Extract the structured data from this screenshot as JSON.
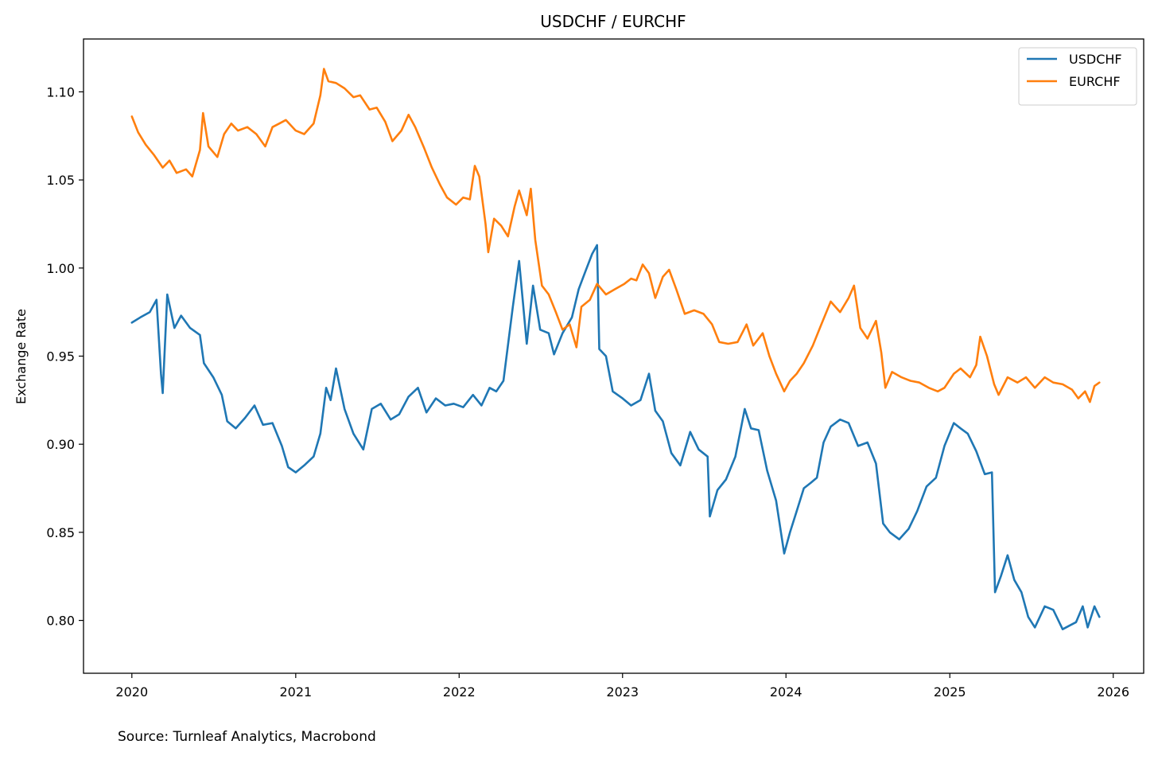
{
  "chart_data": {
    "type": "line",
    "title": "USDCHF / EURCHF",
    "xlabel": "",
    "ylabel": "Exchange Rate",
    "xlim": [
      "2019-09-15",
      "2026-03-10"
    ],
    "ylim": [
      0.77,
      1.13
    ],
    "x_ticks": [
      "2020",
      "2021",
      "2022",
      "2023",
      "2024",
      "2025",
      "2026"
    ],
    "y_ticks": [
      "0.80",
      "0.85",
      "0.90",
      "0.95",
      "1.00",
      "1.05",
      "1.10"
    ],
    "grid": false,
    "legend_position": "top-right",
    "series": [
      {
        "name": "USDCHF",
        "color": "#1f77b4",
        "points": [
          [
            "2020-01-01",
            0.969
          ],
          [
            "2020-01-20",
            0.972
          ],
          [
            "2020-02-10",
            0.975
          ],
          [
            "2020-02-25",
            0.982
          ],
          [
            "2020-03-06",
            0.94
          ],
          [
            "2020-03-10",
            0.929
          ],
          [
            "2020-03-20",
            0.985
          ],
          [
            "2020-04-05",
            0.966
          ],
          [
            "2020-04-20",
            0.973
          ],
          [
            "2020-05-10",
            0.966
          ],
          [
            "2020-06-01",
            0.962
          ],
          [
            "2020-06-10",
            0.946
          ],
          [
            "2020-07-01",
            0.938
          ],
          [
            "2020-07-20",
            0.928
          ],
          [
            "2020-08-01",
            0.913
          ],
          [
            "2020-08-20",
            0.909
          ],
          [
            "2020-09-10",
            0.915
          ],
          [
            "2020-10-01",
            0.922
          ],
          [
            "2020-10-20",
            0.911
          ],
          [
            "2020-11-10",
            0.912
          ],
          [
            "2020-12-01",
            0.899
          ],
          [
            "2020-12-15",
            0.887
          ],
          [
            "2021-01-01",
            0.884
          ],
          [
            "2021-01-20",
            0.888
          ],
          [
            "2021-02-10",
            0.893
          ],
          [
            "2021-02-25",
            0.906
          ],
          [
            "2021-03-10",
            0.932
          ],
          [
            "2021-03-20",
            0.925
          ],
          [
            "2021-04-01",
            0.943
          ],
          [
            "2021-04-20",
            0.92
          ],
          [
            "2021-05-10",
            0.906
          ],
          [
            "2021-06-01",
            0.897
          ],
          [
            "2021-06-20",
            0.92
          ],
          [
            "2021-07-10",
            0.923
          ],
          [
            "2021-08-01",
            0.914
          ],
          [
            "2021-08-20",
            0.917
          ],
          [
            "2021-09-10",
            0.927
          ],
          [
            "2021-10-01",
            0.932
          ],
          [
            "2021-10-20",
            0.918
          ],
          [
            "2021-11-10",
            0.926
          ],
          [
            "2021-12-01",
            0.922
          ],
          [
            "2021-12-20",
            0.923
          ],
          [
            "2022-01-10",
            0.921
          ],
          [
            "2022-02-01",
            0.928
          ],
          [
            "2022-02-20",
            0.922
          ],
          [
            "2022-03-10",
            0.932
          ],
          [
            "2022-03-25",
            0.93
          ],
          [
            "2022-04-10",
            0.936
          ],
          [
            "2022-05-01",
            0.978
          ],
          [
            "2022-05-15",
            1.004
          ],
          [
            "2022-06-01",
            0.957
          ],
          [
            "2022-06-15",
            0.99
          ],
          [
            "2022-07-01",
            0.965
          ],
          [
            "2022-07-20",
            0.963
          ],
          [
            "2022-08-01",
            0.951
          ],
          [
            "2022-08-20",
            0.963
          ],
          [
            "2022-09-10",
            0.972
          ],
          [
            "2022-09-25",
            0.988
          ],
          [
            "2022-10-10",
            0.998
          ],
          [
            "2022-10-25",
            1.008
          ],
          [
            "2022-11-05",
            1.013
          ],
          [
            "2022-11-10",
            0.954
          ],
          [
            "2022-11-25",
            0.95
          ],
          [
            "2022-12-10",
            0.93
          ],
          [
            "2023-01-01",
            0.926
          ],
          [
            "2023-01-20",
            0.922
          ],
          [
            "2023-02-10",
            0.925
          ],
          [
            "2023-03-01",
            0.94
          ],
          [
            "2023-03-15",
            0.919
          ],
          [
            "2023-04-01",
            0.913
          ],
          [
            "2023-04-20",
            0.895
          ],
          [
            "2023-05-10",
            0.888
          ],
          [
            "2023-06-01",
            0.907
          ],
          [
            "2023-06-20",
            0.897
          ],
          [
            "2023-07-10",
            0.893
          ],
          [
            "2023-07-15",
            0.859
          ],
          [
            "2023-08-01",
            0.874
          ],
          [
            "2023-08-20",
            0.88
          ],
          [
            "2023-09-10",
            0.893
          ],
          [
            "2023-10-01",
            0.92
          ],
          [
            "2023-10-15",
            0.909
          ],
          [
            "2023-11-01",
            0.908
          ],
          [
            "2023-11-20",
            0.885
          ],
          [
            "2023-12-10",
            0.868
          ],
          [
            "2023-12-28",
            0.838
          ],
          [
            "2024-01-10",
            0.85
          ],
          [
            "2024-01-25",
            0.862
          ],
          [
            "2024-02-10",
            0.875
          ],
          [
            "2024-02-25",
            0.878
          ],
          [
            "2024-03-10",
            0.881
          ],
          [
            "2024-03-25",
            0.901
          ],
          [
            "2024-04-10",
            0.91
          ],
          [
            "2024-05-01",
            0.914
          ],
          [
            "2024-05-20",
            0.912
          ],
          [
            "2024-06-10",
            0.899
          ],
          [
            "2024-07-01",
            0.901
          ],
          [
            "2024-07-20",
            0.889
          ],
          [
            "2024-08-05",
            0.855
          ],
          [
            "2024-08-20",
            0.85
          ],
          [
            "2024-09-10",
            0.846
          ],
          [
            "2024-10-01",
            0.852
          ],
          [
            "2024-10-20",
            0.862
          ],
          [
            "2024-11-10",
            0.876
          ],
          [
            "2024-12-01",
            0.881
          ],
          [
            "2024-12-20",
            0.899
          ],
          [
            "2025-01-10",
            0.912
          ],
          [
            "2025-01-25",
            0.909
          ],
          [
            "2025-02-10",
            0.906
          ],
          [
            "2025-03-01",
            0.896
          ],
          [
            "2025-03-20",
            0.883
          ],
          [
            "2025-04-05",
            0.884
          ],
          [
            "2025-04-12",
            0.816
          ],
          [
            "2025-04-25",
            0.825
          ],
          [
            "2025-05-10",
            0.837
          ],
          [
            "2025-05-25",
            0.823
          ],
          [
            "2025-06-10",
            0.816
          ],
          [
            "2025-06-25",
            0.802
          ],
          [
            "2025-07-10",
            0.796
          ],
          [
            "2025-08-01",
            0.808
          ],
          [
            "2025-08-20",
            0.806
          ],
          [
            "2025-09-10",
            0.795
          ],
          [
            "2025-09-25",
            0.797
          ],
          [
            "2025-10-10",
            0.799
          ],
          [
            "2025-10-25",
            0.808
          ],
          [
            "2025-11-05",
            0.796
          ],
          [
            "2025-11-20",
            0.808
          ],
          [
            "2025-12-01",
            0.802
          ]
        ]
      },
      {
        "name": "EURCHF",
        "color": "#ff7f0e",
        "points": [
          [
            "2020-01-01",
            1.086
          ],
          [
            "2020-01-15",
            1.077
          ],
          [
            "2020-02-01",
            1.07
          ],
          [
            "2020-02-20",
            1.064
          ],
          [
            "2020-03-10",
            1.057
          ],
          [
            "2020-03-25",
            1.061
          ],
          [
            "2020-04-10",
            1.054
          ],
          [
            "2020-05-01",
            1.056
          ],
          [
            "2020-05-15",
            1.052
          ],
          [
            "2020-06-01",
            1.067
          ],
          [
            "2020-06-08",
            1.088
          ],
          [
            "2020-06-20",
            1.069
          ],
          [
            "2020-07-10",
            1.063
          ],
          [
            "2020-07-25",
            1.076
          ],
          [
            "2020-08-10",
            1.082
          ],
          [
            "2020-08-25",
            1.078
          ],
          [
            "2020-09-15",
            1.08
          ],
          [
            "2020-10-05",
            1.076
          ],
          [
            "2020-10-25",
            1.069
          ],
          [
            "2020-11-10",
            1.08
          ],
          [
            "2020-11-25",
            1.082
          ],
          [
            "2020-12-10",
            1.084
          ],
          [
            "2021-01-01",
            1.078
          ],
          [
            "2021-01-20",
            1.076
          ],
          [
            "2021-02-10",
            1.082
          ],
          [
            "2021-02-25",
            1.098
          ],
          [
            "2021-03-05",
            1.113
          ],
          [
            "2021-03-15",
            1.106
          ],
          [
            "2021-04-01",
            1.105
          ],
          [
            "2021-04-20",
            1.102
          ],
          [
            "2021-05-10",
            1.097
          ],
          [
            "2021-05-25",
            1.098
          ],
          [
            "2021-06-15",
            1.09
          ],
          [
            "2021-07-01",
            1.091
          ],
          [
            "2021-07-20",
            1.083
          ],
          [
            "2021-08-05",
            1.072
          ],
          [
            "2021-08-25",
            1.078
          ],
          [
            "2021-09-10",
            1.087
          ],
          [
            "2021-09-25",
            1.08
          ],
          [
            "2021-10-15",
            1.068
          ],
          [
            "2021-11-01",
            1.057
          ],
          [
            "2021-11-20",
            1.047
          ],
          [
            "2021-12-05",
            1.04
          ],
          [
            "2021-12-25",
            1.036
          ],
          [
            "2022-01-10",
            1.04
          ],
          [
            "2022-01-25",
            1.039
          ],
          [
            "2022-02-05",
            1.058
          ],
          [
            "2022-02-15",
            1.052
          ],
          [
            "2022-03-01",
            1.025
          ],
          [
            "2022-03-07",
            1.009
          ],
          [
            "2022-03-20",
            1.028
          ],
          [
            "2022-04-05",
            1.024
          ],
          [
            "2022-04-20",
            1.018
          ],
          [
            "2022-05-05",
            1.035
          ],
          [
            "2022-05-15",
            1.044
          ],
          [
            "2022-06-01",
            1.03
          ],
          [
            "2022-06-10",
            1.045
          ],
          [
            "2022-06-20",
            1.016
          ],
          [
            "2022-07-05",
            0.99
          ],
          [
            "2022-07-20",
            0.985
          ],
          [
            "2022-08-05",
            0.975
          ],
          [
            "2022-08-20",
            0.965
          ],
          [
            "2022-09-05",
            0.968
          ],
          [
            "2022-09-20",
            0.955
          ],
          [
            "2022-10-01",
            0.978
          ],
          [
            "2022-10-20",
            0.982
          ],
          [
            "2022-11-05",
            0.991
          ],
          [
            "2022-11-25",
            0.985
          ],
          [
            "2022-12-15",
            0.988
          ],
          [
            "2023-01-05",
            0.991
          ],
          [
            "2023-01-20",
            0.994
          ],
          [
            "2023-02-01",
            0.993
          ],
          [
            "2023-02-15",
            1.002
          ],
          [
            "2023-03-01",
            0.997
          ],
          [
            "2023-03-15",
            0.983
          ],
          [
            "2023-04-01",
            0.995
          ],
          [
            "2023-04-15",
            0.999
          ],
          [
            "2023-05-01",
            0.988
          ],
          [
            "2023-05-20",
            0.974
          ],
          [
            "2023-06-10",
            0.976
          ],
          [
            "2023-07-01",
            0.974
          ],
          [
            "2023-07-20",
            0.968
          ],
          [
            "2023-08-05",
            0.958
          ],
          [
            "2023-08-25",
            0.957
          ],
          [
            "2023-09-15",
            0.958
          ],
          [
            "2023-10-05",
            0.968
          ],
          [
            "2023-10-20",
            0.956
          ],
          [
            "2023-11-10",
            0.963
          ],
          [
            "2023-11-25",
            0.95
          ],
          [
            "2023-12-10",
            0.94
          ],
          [
            "2023-12-28",
            0.93
          ],
          [
            "2024-01-10",
            0.936
          ],
          [
            "2024-01-25",
            0.94
          ],
          [
            "2024-02-10",
            0.946
          ],
          [
            "2024-03-01",
            0.956
          ],
          [
            "2024-03-20",
            0.968
          ],
          [
            "2024-04-10",
            0.981
          ],
          [
            "2024-05-01",
            0.975
          ],
          [
            "2024-05-20",
            0.983
          ],
          [
            "2024-06-01",
            0.99
          ],
          [
            "2024-06-15",
            0.966
          ],
          [
            "2024-07-01",
            0.96
          ],
          [
            "2024-07-20",
            0.97
          ],
          [
            "2024-08-01",
            0.952
          ],
          [
            "2024-08-10",
            0.932
          ],
          [
            "2024-08-25",
            0.941
          ],
          [
            "2024-09-15",
            0.938
          ],
          [
            "2024-10-05",
            0.936
          ],
          [
            "2024-10-25",
            0.935
          ],
          [
            "2024-11-15",
            0.932
          ],
          [
            "2024-12-05",
            0.93
          ],
          [
            "2024-12-20",
            0.932
          ],
          [
            "2025-01-10",
            0.94
          ],
          [
            "2025-01-25",
            0.943
          ],
          [
            "2025-02-15",
            0.938
          ],
          [
            "2025-03-01",
            0.945
          ],
          [
            "2025-03-10",
            0.961
          ],
          [
            "2025-03-25",
            0.95
          ],
          [
            "2025-04-10",
            0.934
          ],
          [
            "2025-04-20",
            0.928
          ],
          [
            "2025-05-10",
            0.938
          ],
          [
            "2025-06-01",
            0.935
          ],
          [
            "2025-06-20",
            0.938
          ],
          [
            "2025-07-10",
            0.932
          ],
          [
            "2025-08-01",
            0.938
          ],
          [
            "2025-08-20",
            0.935
          ],
          [
            "2025-09-10",
            0.934
          ],
          [
            "2025-10-01",
            0.931
          ],
          [
            "2025-10-15",
            0.926
          ],
          [
            "2025-10-30",
            0.93
          ],
          [
            "2025-11-10",
            0.924
          ],
          [
            "2025-11-20",
            0.933
          ],
          [
            "2025-12-01",
            0.935
          ]
        ]
      }
    ]
  },
  "footer": {
    "source": "Source: Turnleaf Analytics, Macrobond"
  }
}
